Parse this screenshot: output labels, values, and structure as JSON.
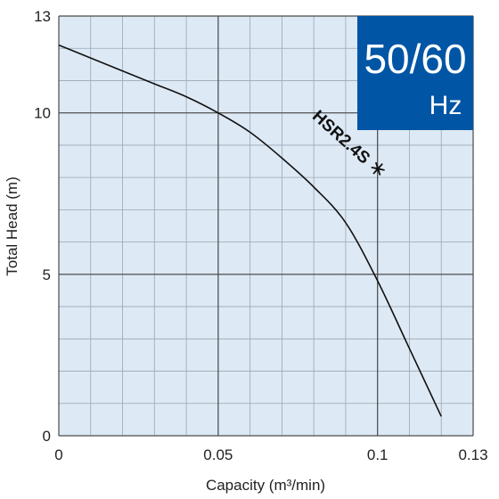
{
  "chart_data": {
    "type": "line",
    "xlabel": "Capacity (m³/min)",
    "ylabel": "Total Head (m)",
    "xlim": [
      0,
      0.13
    ],
    "ylim": [
      0,
      13
    ],
    "xticks": [
      {
        "value": 0,
        "label": "0"
      },
      {
        "value": 0.05,
        "label": "0.05"
      },
      {
        "value": 0.1,
        "label": "0.1"
      },
      {
        "value": 0.13,
        "label": "0.13"
      }
    ],
    "yticks": [
      {
        "value": 0,
        "label": "0"
      },
      {
        "value": 5,
        "label": "5"
      },
      {
        "value": 10,
        "label": "10"
      },
      {
        "value": 13,
        "label": "13"
      }
    ],
    "grid": true,
    "series": [
      {
        "name": "HSR2.4S＊",
        "color": "#111111",
        "x": [
          0,
          0.01,
          0.02,
          0.03,
          0.04,
          0.05,
          0.06,
          0.07,
          0.08,
          0.09,
          0.1,
          0.11,
          0.12
        ],
        "y": [
          12.1,
          11.7,
          11.3,
          10.9,
          10.5,
          10.0,
          9.4,
          8.6,
          7.7,
          6.6,
          4.8,
          2.7,
          0.6
        ]
      }
    ],
    "annotations": [
      {
        "text": "HSR2.4S ＊",
        "x": 0.09,
        "y": 8.9
      }
    ]
  },
  "badge": {
    "line1": "50/60",
    "line2": "Hz",
    "background": "#0055a5"
  },
  "colors": {
    "plot_background": "#dde9f5",
    "minor_grid": "#9aa7b4",
    "major_grid": "#4a4a4a",
    "curve": "#111111"
  }
}
